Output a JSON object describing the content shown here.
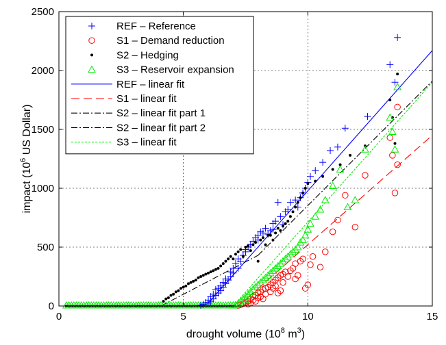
{
  "chart_data": {
    "type": "scatter",
    "title": "",
    "xlabel": "drought volume (10",
    "xlabel_sup": "8",
    "xlabel_mid": " m",
    "xlabel_sup2": "3",
    "xlabel_end": ")",
    "ylabel": "impact (10",
    "ylabel_sup": "6",
    "ylabel_end": " US Dollar)",
    "xlim": [
      0,
      15
    ],
    "ylim": [
      0,
      2500
    ],
    "xticks": [
      0,
      5,
      10,
      15
    ],
    "yticks": [
      0,
      500,
      1000,
      1500,
      2000,
      2500
    ],
    "xtick_labels": [
      "0",
      "5",
      "10",
      "15"
    ],
    "ytick_labels": [
      "0",
      "500",
      "1000",
      "1500",
      "2000",
      "2500"
    ],
    "grid": true,
    "legend_position": "top-left",
    "legend": [
      {
        "label": "REF – Reference",
        "kind": "marker",
        "marker": "plus",
        "color": "#0000ff"
      },
      {
        "label": "S1 – Demand reduction",
        "kind": "marker",
        "marker": "circle",
        "color": "#ff0000"
      },
      {
        "label": "S2 – Hedging",
        "kind": "marker",
        "marker": "dot",
        "color": "#000000"
      },
      {
        "label": "S3 – Reservoir expansion",
        "kind": "marker",
        "marker": "triangle",
        "color": "#00ee00"
      },
      {
        "label": "REF – linear fit",
        "kind": "line",
        "dash": "",
        "color": "#0000ff"
      },
      {
        "label": "S1 – linear fit",
        "kind": "line",
        "dash": "12,6",
        "color": "#ff0000"
      },
      {
        "label": "S2 – linear fit part 1",
        "kind": "line",
        "dash": "9,3,2,3",
        "color": "#000000"
      },
      {
        "label": "S2 – linear fit part 2",
        "kind": "line",
        "dash": "9,3,2,3",
        "color": "#000000"
      },
      {
        "label": "S3 – linear fit",
        "kind": "line",
        "dash": "3,2",
        "color": "#00ee00"
      }
    ],
    "series": [
      {
        "name": "REF – Reference",
        "marker": "plus",
        "color": "#0000ff",
        "x": [
          5.7,
          5.8,
          5.9,
          6.0,
          6.0,
          6.1,
          6.1,
          6.2,
          6.2,
          6.3,
          6.3,
          6.4,
          6.4,
          6.5,
          6.5,
          6.6,
          6.6,
          6.7,
          6.7,
          6.8,
          6.9,
          6.9,
          7.0,
          7.0,
          7.1,
          7.2,
          7.2,
          7.3,
          7.4,
          7.5,
          7.5,
          7.6,
          7.7,
          7.8,
          7.9,
          8.0,
          8.0,
          8.1,
          8.2,
          8.3,
          8.4,
          8.5,
          8.6,
          8.6,
          8.7,
          8.8,
          8.9,
          9.0,
          9.1,
          9.2,
          9.3,
          9.5,
          9.6,
          9.7,
          9.8,
          9.9,
          10.0,
          10.1,
          10.3,
          10.6,
          10.9,
          11.2,
          11.5,
          12.4,
          13.3,
          13.5,
          13.6
        ],
        "y": [
          5,
          15,
          30,
          25,
          50,
          40,
          80,
          60,
          100,
          90,
          140,
          110,
          150,
          130,
          170,
          160,
          200,
          190,
          230,
          220,
          250,
          290,
          280,
          320,
          360,
          320,
          400,
          380,
          430,
          460,
          480,
          500,
          520,
          550,
          580,
          600,
          560,
          630,
          620,
          660,
          610,
          640,
          700,
          650,
          720,
          880,
          760,
          690,
          800,
          820,
          880,
          900,
          840,
          920,
          960,
          1000,
          1050,
          1100,
          1150,
          1220,
          1320,
          1350,
          1510,
          1610,
          2050,
          1900,
          2280
        ]
      },
      {
        "name": "S1 – Demand reduction",
        "marker": "circle",
        "color": "#ff0000",
        "x": [
          7.2,
          7.3,
          7.4,
          7.5,
          7.6,
          7.6,
          7.7,
          7.7,
          7.8,
          7.8,
          7.9,
          7.9,
          8.0,
          8.0,
          8.1,
          8.1,
          8.2,
          8.2,
          8.3,
          8.3,
          8.4,
          8.5,
          8.5,
          8.6,
          8.6,
          8.7,
          8.7,
          8.8,
          8.8,
          8.9,
          8.9,
          9.0,
          9.0,
          9.1,
          9.2,
          9.3,
          9.4,
          9.5,
          9.5,
          9.6,
          9.7,
          9.8,
          9.9,
          10.0,
          10.1,
          10.2,
          10.5,
          10.7,
          11.0,
          11.2,
          11.5,
          11.9,
          12.3,
          13.3,
          13.4,
          13.5,
          13.6,
          13.6
        ],
        "y": [
          5,
          10,
          20,
          30,
          40,
          15,
          60,
          25,
          80,
          50,
          90,
          40,
          110,
          70,
          120,
          80,
          140,
          60,
          150,
          100,
          160,
          180,
          120,
          200,
          150,
          220,
          170,
          240,
          110,
          260,
          130,
          270,
          200,
          290,
          250,
          300,
          320,
          360,
          230,
          260,
          380,
          400,
          150,
          180,
          350,
          420,
          330,
          460,
          630,
          730,
          940,
          670,
          1110,
          1430,
          1280,
          960,
          1690,
          1200
        ],
        "edgeOnly": true
      },
      {
        "name": "S2 – Hedging",
        "marker": "dot",
        "color": "#000000",
        "x": [
          4.2,
          4.3,
          4.4,
          4.5,
          4.6,
          4.7,
          4.8,
          4.9,
          5.0,
          5.1,
          5.2,
          5.3,
          5.4,
          5.5,
          5.6,
          5.7,
          5.8,
          5.9,
          6.0,
          6.1,
          6.2,
          6.3,
          6.4,
          6.5,
          6.6,
          6.7,
          6.8,
          6.9,
          7.0,
          7.1,
          7.2,
          7.3,
          7.4,
          7.5,
          7.6,
          7.7,
          7.8,
          7.9,
          8.0,
          8.1,
          8.2,
          8.3,
          8.4,
          8.5,
          8.6,
          8.7,
          8.8,
          8.9,
          9.0,
          9.1,
          9.2,
          9.3,
          9.4,
          9.5,
          9.6,
          9.7,
          9.8,
          9.9,
          10.0,
          10.3,
          10.6,
          11.0,
          11.3,
          11.7,
          12.3,
          13.3,
          13.4,
          13.5,
          13.6
        ],
        "y": [
          40,
          60,
          70,
          90,
          100,
          120,
          130,
          150,
          160,
          170,
          190,
          200,
          210,
          220,
          240,
          250,
          260,
          270,
          280,
          290,
          300,
          310,
          320,
          340,
          360,
          380,
          400,
          420,
          400,
          440,
          460,
          480,
          420,
          500,
          510,
          470,
          520,
          540,
          380,
          560,
          580,
          520,
          600,
          600,
          560,
          620,
          660,
          640,
          680,
          700,
          720,
          760,
          800,
          840,
          880,
          920,
          960,
          1000,
          1040,
          1060,
          1100,
          1160,
          1200,
          1280,
          1360,
          1750,
          1600,
          1380,
          1970
        ]
      },
      {
        "name": "S3 – Reservoir expansion",
        "marker": "triangle",
        "color": "#00ee00",
        "x": [
          7.0,
          7.1,
          7.2,
          7.3,
          7.4,
          7.5,
          7.5,
          7.6,
          7.7,
          7.8,
          7.9,
          8.0,
          8.1,
          8.2,
          8.3,
          8.4,
          8.5,
          8.6,
          8.7,
          8.8,
          8.9,
          9.0,
          9.1,
          9.2,
          9.3,
          9.4,
          9.5,
          9.6,
          9.7,
          9.8,
          9.9,
          10.0,
          10.1,
          10.3,
          10.5,
          10.7,
          11.0,
          11.3,
          11.6,
          11.9,
          12.3,
          13.3,
          13.4,
          13.5,
          13.6
        ],
        "y": [
          5,
          10,
          20,
          40,
          60,
          80,
          50,
          100,
          120,
          140,
          160,
          180,
          200,
          220,
          240,
          260,
          280,
          300,
          320,
          340,
          360,
          380,
          400,
          420,
          440,
          460,
          480,
          500,
          540,
          560,
          600,
          650,
          700,
          760,
          820,
          900,
          1020,
          1160,
          840,
          900,
          1330,
          1600,
          1480,
          1330,
          1860
        ],
        "edgeOnly": true
      }
    ],
    "zero_band": {
      "x_start": 0.3,
      "x_end": 7.0,
      "step": 0.1,
      "color": "#00ee00"
    },
    "fits": [
      {
        "name": "REF – linear fit",
        "color": "#0000ff",
        "dash": "",
        "x": [
          5.9,
          15
        ],
        "y": [
          0,
          2170
        ]
      },
      {
        "name": "S1 – linear fit",
        "color": "#ff0000",
        "dash": "12,6",
        "x": [
          7.2,
          15
        ],
        "y": [
          0,
          1450
        ]
      },
      {
        "name": "S2 – linear fit part 1",
        "color": "#000000",
        "dash": "9,3,2,3",
        "x": [
          4.1,
          8.0
        ],
        "y": [
          0,
          430
        ]
      },
      {
        "name": "S2 – linear fit part 2",
        "color": "#000000",
        "dash": "9,3,2,3",
        "x": [
          8.0,
          15
        ],
        "y": [
          430,
          1910
        ]
      },
      {
        "name": "S3 – linear fit",
        "color": "#00ee00",
        "dash": "3,2",
        "x": [
          7.0,
          15
        ],
        "y": [
          0,
          1900
        ]
      }
    ]
  }
}
